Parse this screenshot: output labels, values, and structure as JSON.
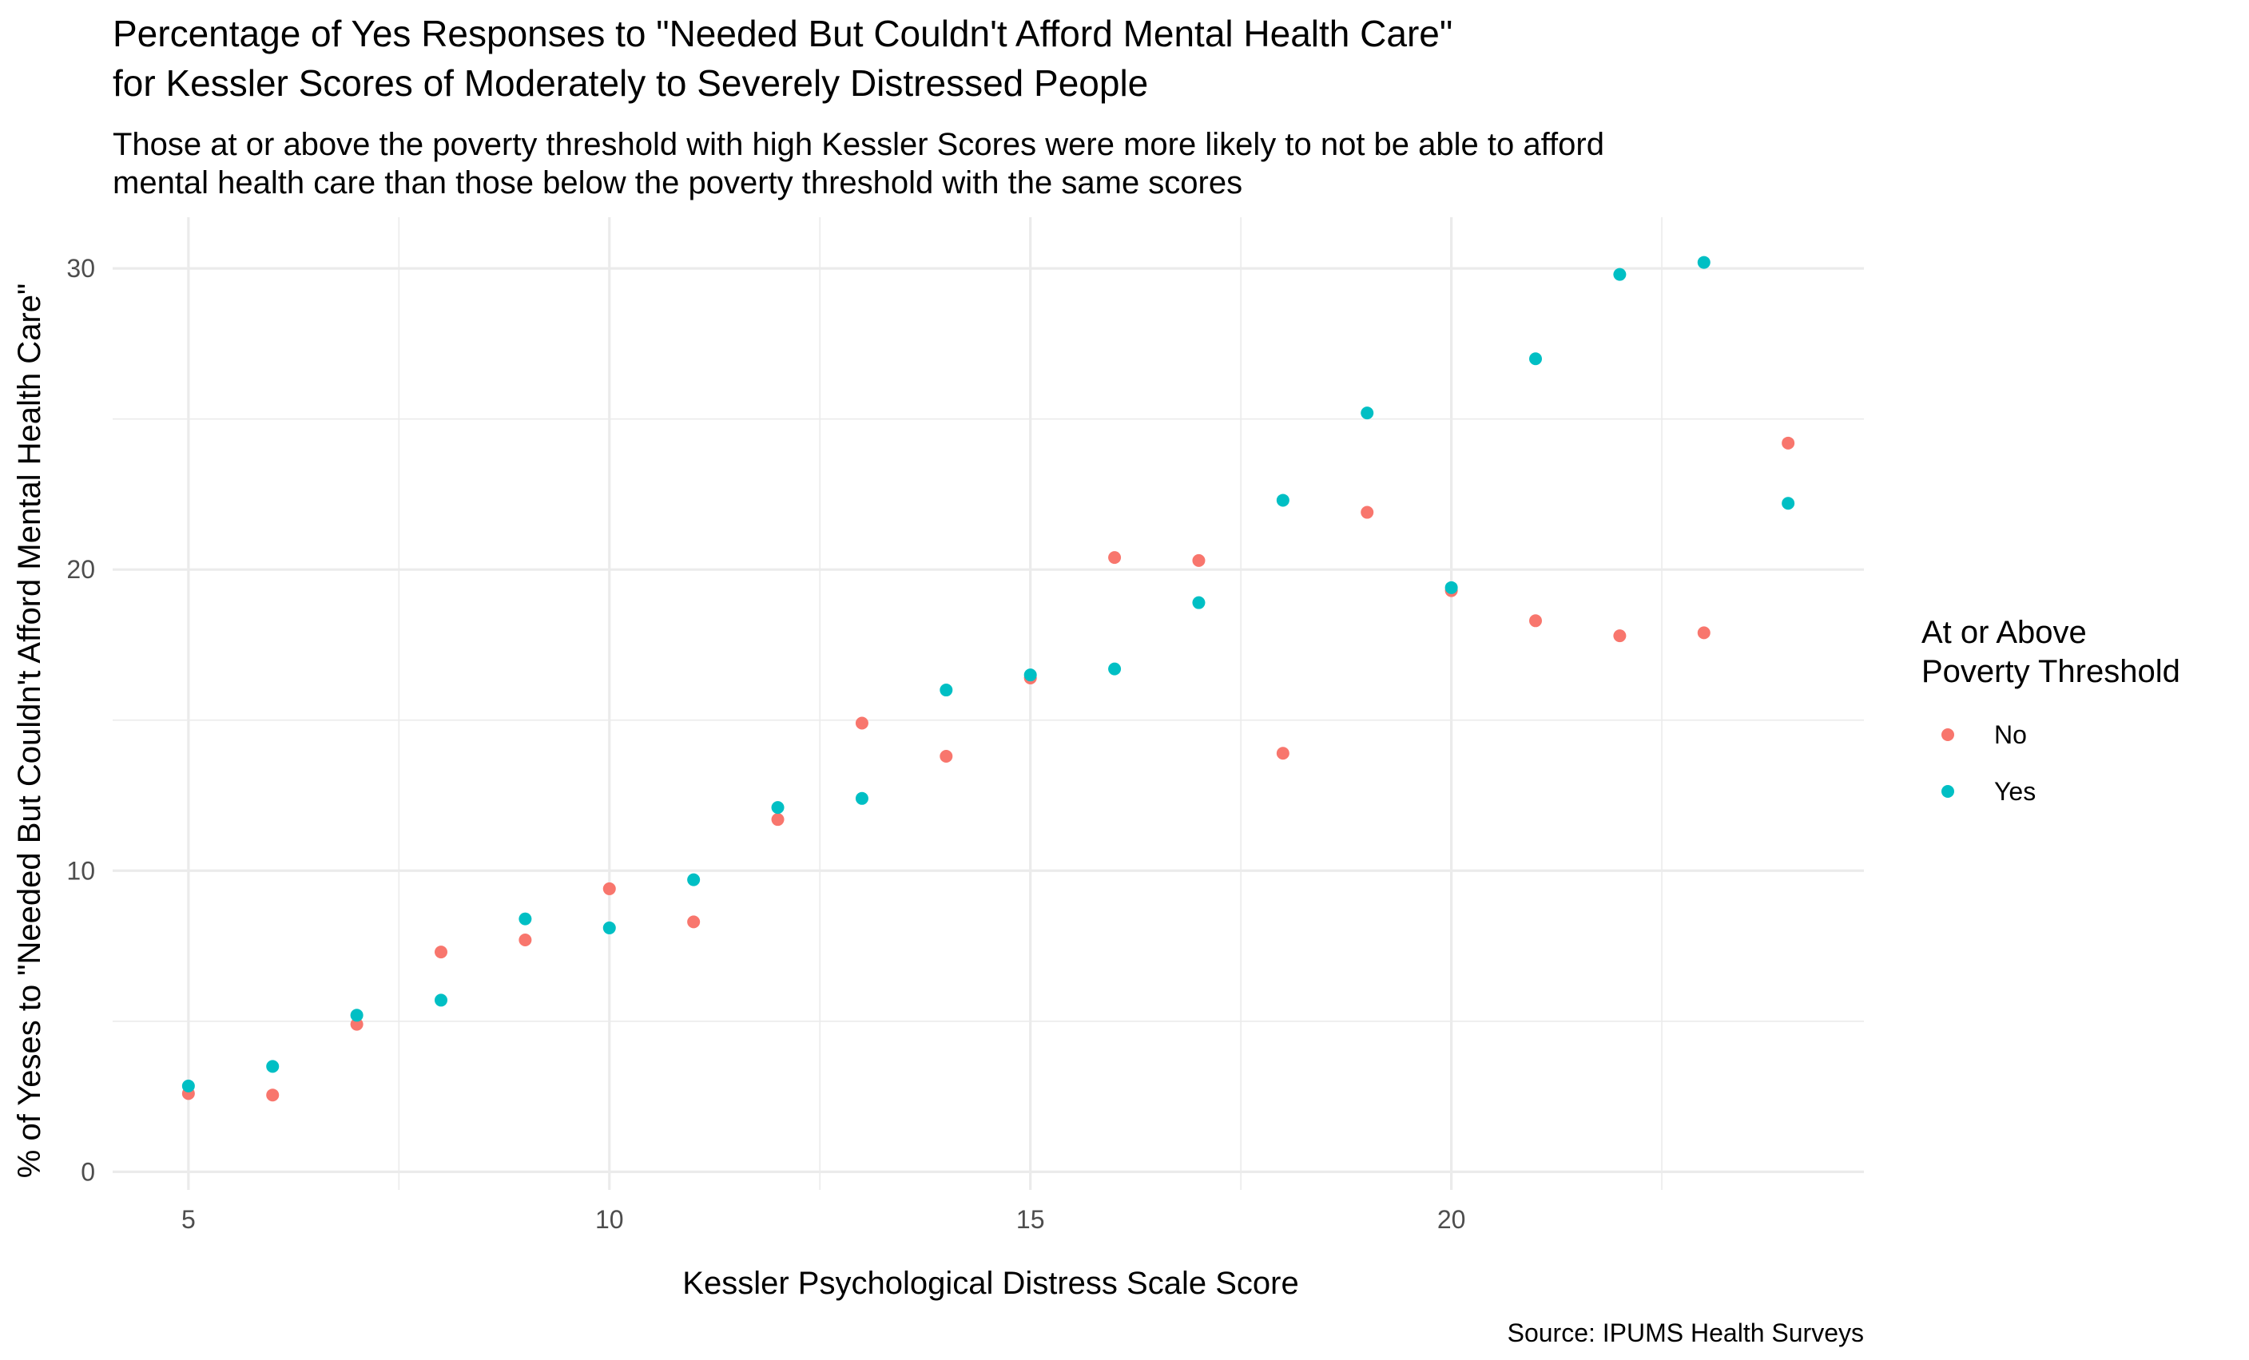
{
  "chart_data": {
    "type": "scatter",
    "title": "Percentage of Yes Responses to \"Needed But Couldn't Afford Mental Health Care\"",
    "title_line2": "for Kessler Scores of Moderately to Severely Distressed People",
    "subtitle": "Those at or above the poverty threshold with high Kessler Scores were more likely to not be able to afford",
    "subtitle_line2": "mental health care than those below the poverty threshold with the same scores",
    "xlabel": "Kessler Psychological Distress Scale Score",
    "ylabel": "% of Yeses to \"Needed But Couldn't Afford Mental Health Care\"",
    "caption": "Source: IPUMS Health Surveys",
    "xlim": [
      4.1,
      24.9
    ],
    "ylim": [
      -0.6,
      31.7
    ],
    "x_ticks": [
      5,
      10,
      15,
      20
    ],
    "y_ticks": [
      0,
      10,
      20,
      30
    ],
    "grid": true,
    "legend": {
      "title": "At or Above",
      "title_line2": "Poverty Threshold",
      "placement": "right"
    },
    "series": [
      {
        "name": "No",
        "color": "#F8766D",
        "points": [
          [
            5,
            2.6
          ],
          [
            6,
            2.55
          ],
          [
            7,
            4.9
          ],
          [
            8,
            7.3
          ],
          [
            9,
            7.7
          ],
          [
            10,
            9.4
          ],
          [
            11,
            8.3
          ],
          [
            12,
            11.7
          ],
          [
            13,
            14.9
          ],
          [
            14,
            13.8
          ],
          [
            15,
            16.4
          ],
          [
            16,
            20.4
          ],
          [
            17,
            20.3
          ],
          [
            18,
            13.9
          ],
          [
            19,
            21.9
          ],
          [
            20,
            19.3
          ],
          [
            21,
            18.3
          ],
          [
            22,
            17.8
          ],
          [
            23,
            17.9
          ],
          [
            24,
            24.2
          ]
        ]
      },
      {
        "name": "Yes",
        "color": "#00BFC4",
        "points": [
          [
            5,
            2.85
          ],
          [
            6,
            3.5
          ],
          [
            7,
            5.2
          ],
          [
            8,
            5.7
          ],
          [
            9,
            8.4
          ],
          [
            10,
            8.1
          ],
          [
            11,
            9.7
          ],
          [
            12,
            12.1
          ],
          [
            13,
            12.4
          ],
          [
            14,
            16.0
          ],
          [
            15,
            16.5
          ],
          [
            16,
            16.7
          ],
          [
            17,
            18.9
          ],
          [
            18,
            22.3
          ],
          [
            19,
            25.2
          ],
          [
            20,
            19.4
          ],
          [
            21,
            27.0
          ],
          [
            22,
            29.8
          ],
          [
            23,
            30.2
          ],
          [
            24,
            22.2
          ]
        ]
      }
    ]
  }
}
